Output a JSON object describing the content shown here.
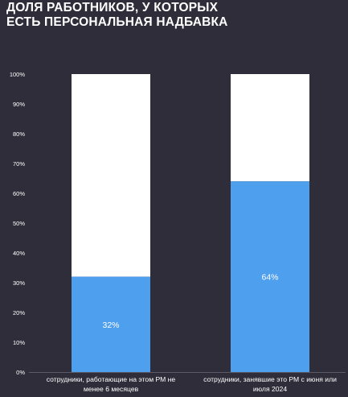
{
  "title_line1": "ДОЛЯ РАБОТНИКОВ, У КОТОРЫХ",
  "title_line2": "ЕСТЬ ПЕРСОНАЛЬНАЯ НАДБАВКА",
  "colors": {
    "background": "#2e2d39",
    "filled": "#4f9fef",
    "remainder": "#ffffff",
    "text": "#ffffff"
  },
  "chart_data": {
    "type": "bar",
    "stacked": true,
    "categories": [
      "сотрудники, работающие на этом РМ не менее 6 месяцев",
      "сотрудники, занявшие это РМ с июня или июля 2024"
    ],
    "category_lines": [
      [
        "сотрудники, работающие на этом РМ не",
        "менее 6 месяцев"
      ],
      [
        "сотрудники, занявшие это РМ с июня или",
        "июля 2024"
      ]
    ],
    "values": [
      32,
      64
    ],
    "data_labels": [
      "32%",
      "64%"
    ],
    "yticks": [
      "0%",
      "10%",
      "20%",
      "30%",
      "40%",
      "50%",
      "60%",
      "70%",
      "80%",
      "90%",
      "100%"
    ],
    "ylim": [
      0,
      100
    ],
    "grid": false,
    "legend": "none"
  }
}
